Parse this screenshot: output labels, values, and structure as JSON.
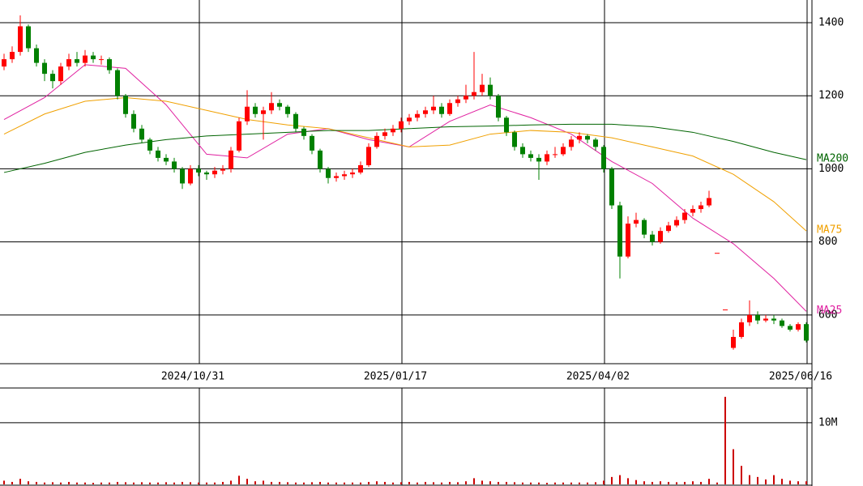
{
  "chart_data": [
    {
      "type": "candlestick",
      "xlim": [
        -0.5,
        99.5
      ],
      "xticks": [
        {
          "value": 24,
          "label": "2024/10/31"
        },
        {
          "value": 49,
          "label": "2025/01/17"
        },
        {
          "value": 74,
          "label": "2025/04/02"
        },
        {
          "value": 99,
          "label": "2025/06/16"
        }
      ],
      "ylim": [
        469,
        1462
      ],
      "yticks": [
        600,
        800,
        1000,
        1200,
        1400
      ],
      "grid": true,
      "up_color": "#ff0000",
      "down_color": "#008000",
      "open": [
        1280,
        1300,
        1320,
        1390,
        1330,
        1290,
        1260,
        1240,
        1280,
        1300,
        1290,
        1310,
        1300,
        1300,
        1270,
        1200,
        1150,
        1110,
        1080,
        1050,
        1030,
        1020,
        1000,
        960,
        1000,
        990,
        985,
        995,
        1000,
        1050,
        1130,
        1170,
        1150,
        1160,
        1180,
        1170,
        1150,
        1110,
        1090,
        1050,
        1000,
        975,
        980,
        985,
        990,
        1010,
        1060,
        1090,
        1100,
        1110,
        1130,
        1140,
        1150,
        1160,
        1170,
        1150,
        1180,
        1190,
        1200,
        1210,
        1230,
        1200,
        1140,
        1100,
        1060,
        1040,
        1030,
        1020,
        1040,
        1040,
        1060,
        1080,
        1090,
        1080,
        1060,
        1000,
        900,
        760,
        850,
        860,
        820,
        800,
        830,
        845,
        860,
        880,
        890,
        900,
        770,
        615,
        510,
        540,
        580,
        600,
        585,
        590,
        585,
        570,
        560,
        575
      ],
      "high": [
        1315,
        1335,
        1420,
        1395,
        1340,
        1300,
        1270,
        1290,
        1315,
        1320,
        1325,
        1320,
        1310,
        1305,
        1275,
        1205,
        1160,
        1120,
        1085,
        1060,
        1040,
        1030,
        1005,
        1010,
        1010,
        995,
        1005,
        1010,
        1060,
        1140,
        1215,
        1180,
        1170,
        1210,
        1190,
        1175,
        1155,
        1115,
        1095,
        1055,
        1005,
        990,
        995,
        1000,
        1020,
        1070,
        1100,
        1110,
        1120,
        1140,
        1150,
        1160,
        1170,
        1200,
        1180,
        1190,
        1200,
        1230,
        1320,
        1260,
        1250,
        1205,
        1145,
        1105,
        1070,
        1050,
        1040,
        1050,
        1060,
        1070,
        1090,
        1100,
        1095,
        1085,
        1065,
        1005,
        910,
        870,
        880,
        865,
        830,
        840,
        855,
        870,
        890,
        900,
        910,
        940,
        770,
        615,
        560,
        590,
        640,
        610,
        600,
        600,
        590,
        575,
        580,
        580
      ],
      "low": [
        1270,
        1290,
        1310,
        1320,
        1280,
        1240,
        1220,
        1230,
        1270,
        1280,
        1280,
        1290,
        1285,
        1260,
        1190,
        1140,
        1100,
        1070,
        1040,
        1020,
        1010,
        990,
        945,
        955,
        980,
        970,
        975,
        985,
        990,
        1045,
        1120,
        1140,
        1080,
        1150,
        1160,
        1140,
        1100,
        1080,
        1040,
        990,
        960,
        965,
        970,
        975,
        985,
        1005,
        1055,
        1080,
        1090,
        1100,
        1120,
        1130,
        1140,
        1150,
        1140,
        1145,
        1170,
        1180,
        1190,
        1200,
        1190,
        1130,
        1090,
        1050,
        1030,
        1020,
        970,
        1010,
        1030,
        1035,
        1050,
        1070,
        1070,
        1050,
        990,
        890,
        700,
        755,
        840,
        810,
        790,
        795,
        825,
        840,
        850,
        870,
        880,
        895,
        770,
        615,
        505,
        535,
        570,
        575,
        580,
        575,
        565,
        555,
        555,
        525
      ],
      "close": [
        1300,
        1320,
        1390,
        1330,
        1290,
        1260,
        1240,
        1280,
        1300,
        1290,
        1310,
        1300,
        1300,
        1270,
        1200,
        1150,
        1110,
        1080,
        1050,
        1030,
        1020,
        1000,
        960,
        1000,
        990,
        985,
        995,
        1000,
        1050,
        1130,
        1170,
        1150,
        1160,
        1180,
        1170,
        1150,
        1110,
        1090,
        1050,
        1000,
        975,
        980,
        985,
        990,
        1010,
        1060,
        1090,
        1100,
        1110,
        1130,
        1140,
        1150,
        1160,
        1170,
        1150,
        1180,
        1190,
        1200,
        1210,
        1230,
        1200,
        1140,
        1100,
        1060,
        1040,
        1030,
        1020,
        1040,
        1040,
        1060,
        1080,
        1090,
        1080,
        1060,
        1000,
        900,
        760,
        850,
        860,
        820,
        800,
        830,
        845,
        860,
        880,
        890,
        900,
        920,
        770,
        615,
        540,
        580,
        600,
        585,
        590,
        585,
        570,
        560,
        575,
        530
      ],
      "series": [
        {
          "name": "MA25",
          "color": "#e020a0",
          "x": [
            0,
            5,
            10,
            15,
            20,
            25,
            30,
            35,
            40,
            45,
            50,
            55,
            60,
            65,
            70,
            75,
            80,
            85,
            90,
            95,
            99
          ],
          "values": [
            1135,
            1195,
            1285,
            1275,
            1175,
            1040,
            1030,
            1095,
            1110,
            1080,
            1060,
            1130,
            1175,
            1140,
            1095,
            1020,
            960,
            865,
            795,
            700,
            610
          ]
        },
        {
          "name": "MA75",
          "color": "#f0a000",
          "x": [
            0,
            5,
            10,
            15,
            20,
            25,
            30,
            35,
            40,
            45,
            50,
            55,
            60,
            65,
            70,
            75,
            80,
            85,
            90,
            95,
            99
          ],
          "values": [
            1095,
            1150,
            1185,
            1195,
            1185,
            1160,
            1135,
            1120,
            1110,
            1085,
            1060,
            1065,
            1095,
            1105,
            1100,
            1085,
            1060,
            1035,
            985,
            910,
            830
          ]
        },
        {
          "name": "MA200",
          "color": "#006400",
          "x": [
            0,
            5,
            10,
            15,
            20,
            25,
            30,
            35,
            40,
            45,
            50,
            55,
            60,
            65,
            70,
            75,
            80,
            85,
            90,
            95,
            99
          ],
          "values": [
            990,
            1015,
            1045,
            1065,
            1080,
            1090,
            1095,
            1100,
            1105,
            1105,
            1110,
            1115,
            1117,
            1120,
            1122,
            1122,
            1115,
            1100,
            1075,
            1045,
            1025
          ]
        }
      ]
    },
    {
      "type": "bar",
      "xlim": [
        -0.5,
        99.5
      ],
      "ylim": [
        0,
        15500000
      ],
      "yticks": [
        {
          "value": 10000000,
          "label": "10M"
        }
      ],
      "grid": true,
      "color": "#cc0000",
      "values": [
        600000,
        400000,
        900000,
        500000,
        400000,
        300000,
        350000,
        300000,
        400000,
        300000,
        300000,
        250000,
        300000,
        300000,
        400000,
        350000,
        300000,
        350000,
        300000,
        300000,
        350000,
        300000,
        400000,
        350000,
        300000,
        300000,
        300000,
        400000,
        600000,
        1400000,
        900000,
        500000,
        600000,
        400000,
        400000,
        350000,
        300000,
        300000,
        350000,
        400000,
        300000,
        300000,
        300000,
        300000,
        300000,
        400000,
        500000,
        400000,
        300000,
        350000,
        400000,
        300000,
        400000,
        350000,
        300000,
        400000,
        350000,
        500000,
        1000000,
        600000,
        500000,
        400000,
        400000,
        350000,
        300000,
        300000,
        300000,
        250000,
        300000,
        300000,
        300000,
        300000,
        300000,
        350000,
        600000,
        1200000,
        1500000,
        1000000,
        700000,
        500000,
        400000,
        500000,
        400000,
        350000,
        400000,
        500000,
        400000,
        900000,
        300000,
        14200000,
        5700000,
        3000000,
        1500000,
        1200000,
        800000,
        1500000,
        900000,
        600000,
        500000,
        500000
      ]
    }
  ]
}
